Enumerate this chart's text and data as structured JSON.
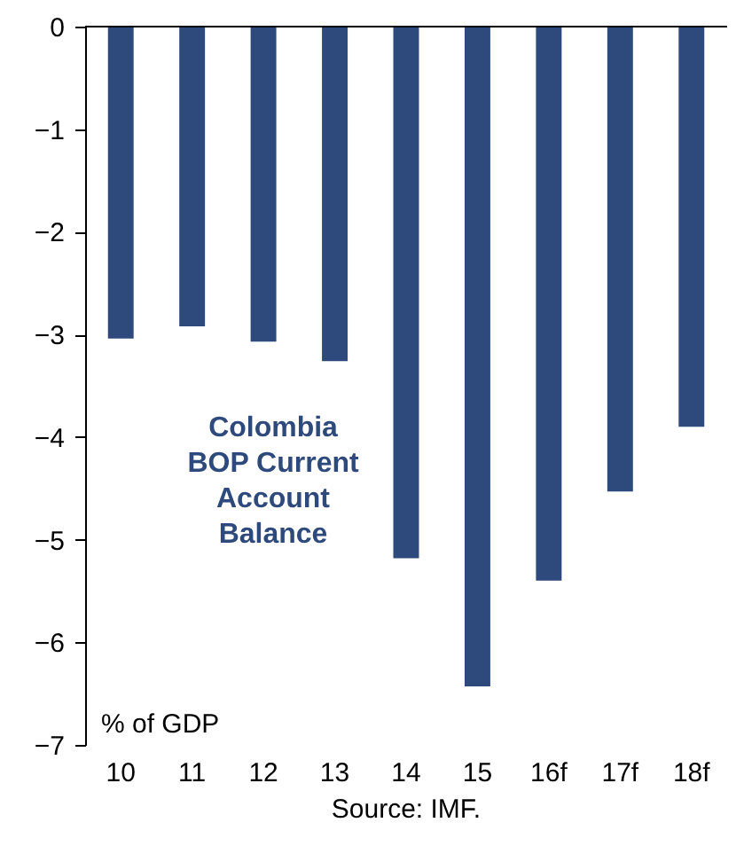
{
  "chart_data": {
    "type": "bar",
    "title": "Colombia\nBOP Current\nAccount\nBalance",
    "ylabel": "% of GDP",
    "annotations": [
      "Source: IMF."
    ],
    "categories": [
      "10",
      "11",
      "12",
      "13",
      "14",
      "15",
      "16f",
      "17f",
      "18f"
    ],
    "series": [
      {
        "color": "#2e4a7d",
        "values": [
          -3.04,
          -2.92,
          -3.07,
          -3.26,
          -5.18,
          -6.43,
          -5.4,
          -4.53,
          -3.9
        ]
      }
    ],
    "ylim": [
      -7,
      0
    ],
    "yticks": [
      -7,
      -6,
      -5,
      -4,
      -3,
      -2,
      -1,
      0
    ],
    "grid": false
  }
}
